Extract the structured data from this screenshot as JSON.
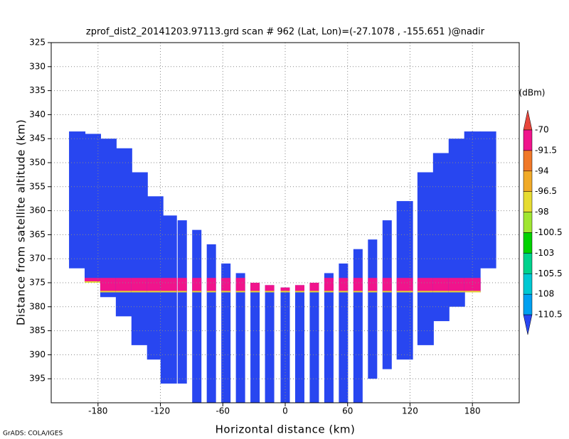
{
  "chart_data": {
    "type": "profile",
    "title": "zprof_dist2_20141203.97113.grd  scan # 962  (Lat, Lon)=(-27.1078 , -155.651 )@nadir",
    "x_label": "Horizontal distance (km)",
    "y_label": "Distance from satellite altitude (km)",
    "footer": "GrADS: COLA/IGES",
    "xlim": [
      -225,
      225
    ],
    "ylim": [
      325,
      400
    ],
    "y_inverted": true,
    "xticks": [
      -180,
      -120,
      -60,
      0,
      60,
      120,
      180
    ],
    "yticks": [
      325,
      330,
      335,
      340,
      345,
      350,
      355,
      360,
      365,
      370,
      375,
      380,
      385,
      390,
      395
    ],
    "grid": true,
    "columns": {
      "x": [
        -200,
        -185,
        -170,
        -155,
        -140,
        -125,
        -112,
        -99,
        -85,
        -71,
        -57,
        -43,
        -29,
        -15,
        0,
        14,
        28,
        42,
        56,
        70,
        84,
        98,
        115,
        135,
        150,
        165,
        180,
        195
      ],
      "top": [
        343.5,
        344,
        345,
        347,
        352,
        357,
        361,
        362,
        364,
        367,
        371,
        373,
        375,
        375.5,
        376,
        375.5,
        375,
        373,
        371,
        368,
        366,
        362,
        358,
        352,
        348,
        345,
        343.5,
        343.5
      ],
      "bottom": [
        372,
        375,
        378,
        382,
        388,
        391,
        396,
        396,
        400,
        400,
        400,
        400,
        400,
        400,
        400,
        400,
        400,
        400,
        400,
        400,
        395,
        393,
        391,
        388,
        383,
        380,
        377,
        372
      ],
      "value": -112
    },
    "surface": {
      "top": 374,
      "bottom": 377,
      "value": -85
    },
    "colorbar": {
      "title": "(dBm)",
      "levels": [
        -70,
        -91.5,
        -94,
        -96.5,
        -98,
        -100.5,
        -103,
        -105.5,
        -108,
        -110.5
      ],
      "colors": [
        "#e8463c",
        "#f0148c",
        "#f07828",
        "#f0aa28",
        "#e6dc32",
        "#a0e632",
        "#00d200",
        "#00d28c",
        "#00c8d2",
        "#00a0f0",
        "#2846f0"
      ]
    }
  }
}
